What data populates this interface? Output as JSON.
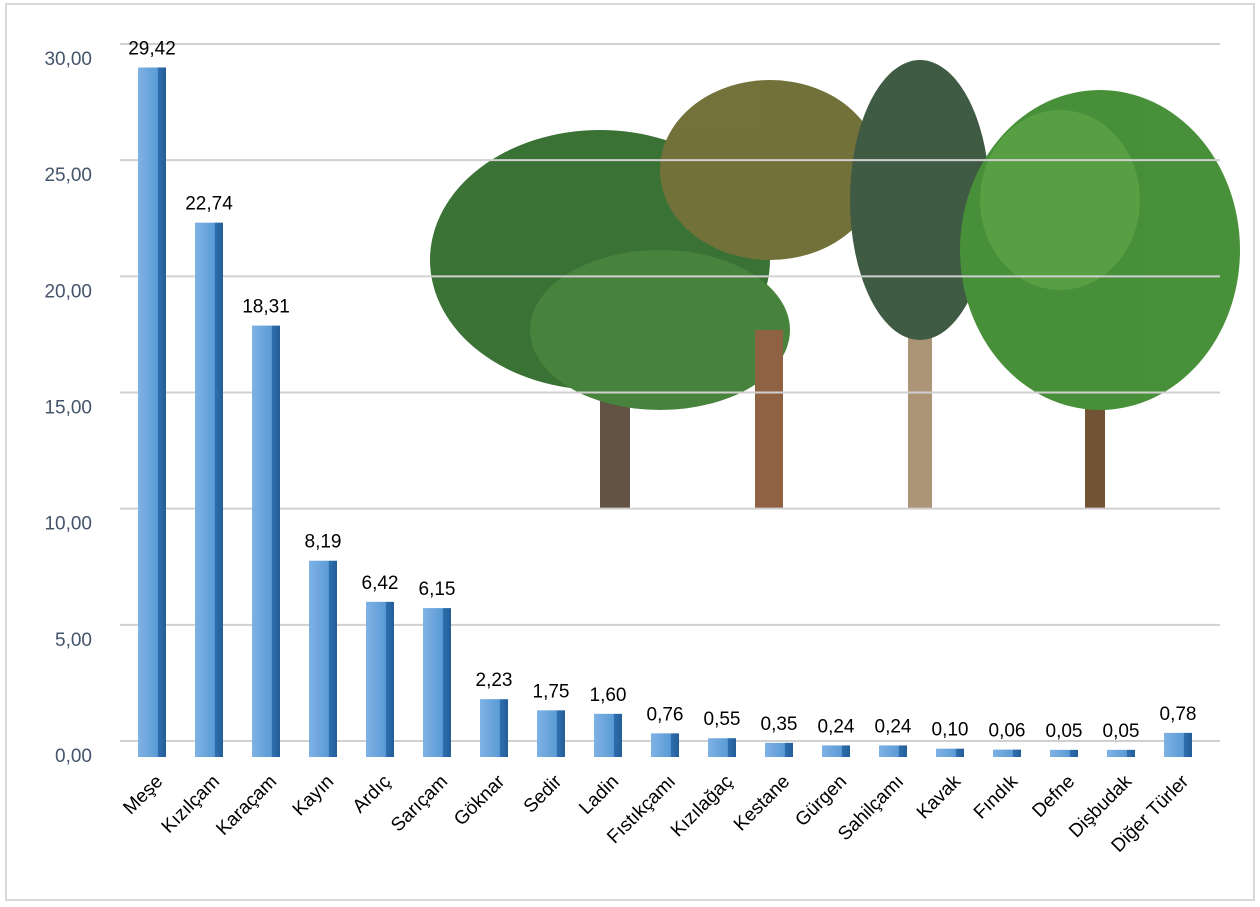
{
  "chart_data": {
    "type": "bar",
    "categories": [
      "Meşe",
      "Kızılçam",
      "Karaçam",
      "Kayın",
      "Ardıç",
      "Sarıçam",
      "Göknar",
      "Sedir",
      "Ladin",
      "Fıstıkçamı",
      "Kızılağaç",
      "Kestane",
      "Gürgen",
      "Sahilçamı",
      "Kavak",
      "Fındık",
      "Defne",
      "Dişbudak",
      "Diğer Türler"
    ],
    "values": [
      29.42,
      22.74,
      18.31,
      8.19,
      6.42,
      6.15,
      2.23,
      1.75,
      1.6,
      0.76,
      0.55,
      0.35,
      0.24,
      0.24,
      0.1,
      0.06,
      0.05,
      0.05,
      0.78
    ],
    "value_labels": [
      "29,42",
      "22,74",
      "18,31",
      "8,19",
      "6,42",
      "6,15",
      "2,23",
      "1,75",
      "1,60",
      "0,76",
      "0,55",
      "0,35",
      "0,24",
      "0,24",
      "0,10",
      "0,06",
      "0,05",
      "0,05",
      "0,78"
    ],
    "color": "#5b9bd5",
    "ylim": [
      0,
      30
    ],
    "yticks": [
      {
        "value": 0,
        "label": "0,00"
      },
      {
        "value": 5,
        "label": "5,00"
      },
      {
        "value": 10,
        "label": "10,00"
      },
      {
        "value": 15,
        "label": "15,00"
      },
      {
        "value": 20,
        "label": "20,00"
      },
      {
        "value": 25,
        "label": "25,00"
      },
      {
        "value": 30,
        "label": "30,00"
      }
    ],
    "grid": true
  }
}
